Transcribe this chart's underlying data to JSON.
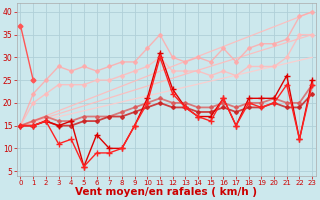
{
  "bg_color": "#cce8ed",
  "grid_color": "#b0d0d8",
  "xlabel": "Vent moyen/en rafales ( km/h )",
  "xlabel_color": "#cc0000",
  "xlabel_fontsize": 7.5,
  "yticks": [
    5,
    10,
    15,
    20,
    25,
    30,
    35,
    40
  ],
  "xticks": [
    0,
    1,
    2,
    3,
    4,
    5,
    6,
    7,
    8,
    9,
    10,
    11,
    12,
    13,
    14,
    15,
    16,
    17,
    18,
    19,
    20,
    21,
    22,
    23
  ],
  "xlim": [
    -0.3,
    23.3
  ],
  "ylim": [
    4,
    42
  ],
  "lines": [
    {
      "x": [
        0,
        23
      ],
      "y": [
        15,
        35
      ],
      "color": "#ffbbbb",
      "alpha": 0.9,
      "lw": 0.9,
      "marker": null,
      "ms": 0,
      "linestyle": "-"
    },
    {
      "x": [
        0,
        23
      ],
      "y": [
        15,
        40
      ],
      "color": "#ffbbbb",
      "alpha": 0.9,
      "lw": 0.9,
      "marker": null,
      "ms": 0,
      "linestyle": "-"
    },
    {
      "x": [
        0,
        23
      ],
      "y": [
        15,
        30
      ],
      "color": "#ffcccc",
      "alpha": 0.9,
      "lw": 0.9,
      "marker": null,
      "ms": 0,
      "linestyle": "-"
    },
    {
      "x": [
        0,
        1,
        2,
        3,
        4,
        5,
        6,
        7,
        8,
        9,
        10,
        11,
        12,
        13,
        14,
        15,
        16,
        17,
        18,
        19,
        20,
        21,
        22,
        23
      ],
      "y": [
        15,
        22,
        25,
        28,
        27,
        28,
        27,
        28,
        29,
        29,
        32,
        35,
        30,
        29,
        30,
        29,
        32,
        29,
        32,
        33,
        33,
        34,
        39,
        40
      ],
      "color": "#ffaaaa",
      "alpha": 0.85,
      "lw": 1.0,
      "marker": "D",
      "ms": 2.0,
      "linestyle": "-"
    },
    {
      "x": [
        0,
        1,
        2,
        3,
        4,
        5,
        6,
        7,
        8,
        9,
        10,
        11,
        12,
        13,
        14,
        15,
        16,
        17,
        18,
        19,
        20,
        21,
        22,
        23
      ],
      "y": [
        15,
        20,
        22,
        24,
        24,
        24,
        25,
        25,
        26,
        27,
        28,
        30,
        27,
        27,
        27,
        26,
        27,
        26,
        28,
        28,
        28,
        30,
        35,
        35
      ],
      "color": "#ffbbbb",
      "alpha": 0.85,
      "lw": 1.0,
      "marker": "D",
      "ms": 2.0,
      "linestyle": "-"
    },
    {
      "x": [
        0,
        1,
        2,
        3,
        4,
        5,
        6,
        7,
        8,
        9,
        10,
        11,
        12,
        13,
        14,
        15,
        16,
        17,
        18,
        19,
        20,
        21,
        22,
        23
      ],
      "y": [
        15,
        16,
        17,
        16,
        16,
        17,
        17,
        17,
        18,
        19,
        20,
        21,
        20,
        20,
        19,
        19,
        20,
        19,
        20,
        20,
        21,
        20,
        20,
        24
      ],
      "color": "#dd5555",
      "alpha": 0.75,
      "lw": 1.3,
      "marker": "D",
      "ms": 2.0,
      "linestyle": "-"
    },
    {
      "x": [
        0,
        1,
        2,
        3,
        4,
        5,
        6,
        7,
        8,
        9,
        10,
        11,
        12,
        13,
        14,
        15,
        16,
        17,
        18,
        19,
        20,
        21,
        22,
        23
      ],
      "y": [
        15,
        15,
        16,
        15,
        15,
        16,
        16,
        17,
        17,
        18,
        19,
        20,
        19,
        19,
        18,
        18,
        19,
        18,
        19,
        19,
        20,
        19,
        19,
        22
      ],
      "color": "#cc2222",
      "alpha": 0.85,
      "lw": 1.3,
      "marker": "D",
      "ms": 2.0,
      "linestyle": "-"
    },
    {
      "x": [
        0,
        1,
        2,
        3,
        4,
        5,
        6,
        7,
        8,
        9,
        10,
        11,
        12,
        13,
        14,
        15,
        16,
        17,
        18,
        19,
        20,
        21,
        22,
        23
      ],
      "y": [
        15,
        15,
        16,
        15,
        16,
        6,
        13,
        10,
        10,
        15,
        21,
        31,
        23,
        19,
        17,
        17,
        21,
        15,
        21,
        21,
        21,
        26,
        12,
        25
      ],
      "color": "#dd0000",
      "alpha": 1.0,
      "lw": 1.0,
      "marker": "+",
      "ms": 4.5,
      "linestyle": "-"
    },
    {
      "x": [
        0,
        1,
        2,
        3,
        4,
        5,
        6,
        7,
        8,
        9,
        10,
        11,
        12,
        13,
        14,
        15,
        16,
        17,
        18,
        19,
        20,
        21,
        22,
        23
      ],
      "y": [
        15,
        15,
        16,
        11,
        12,
        6,
        9,
        9,
        10,
        15,
        20,
        30,
        22,
        19,
        17,
        16,
        21,
        15,
        20,
        19,
        20,
        24,
        12,
        24
      ],
      "color": "#ff2222",
      "alpha": 1.0,
      "lw": 1.0,
      "marker": "+",
      "ms": 4.5,
      "linestyle": "-"
    },
    {
      "x": [
        0,
        1
      ],
      "y": [
        37,
        25
      ],
      "color": "#ff5555",
      "alpha": 1.0,
      "lw": 1.0,
      "marker": "D",
      "ms": 2.5,
      "linestyle": "-"
    }
  ]
}
